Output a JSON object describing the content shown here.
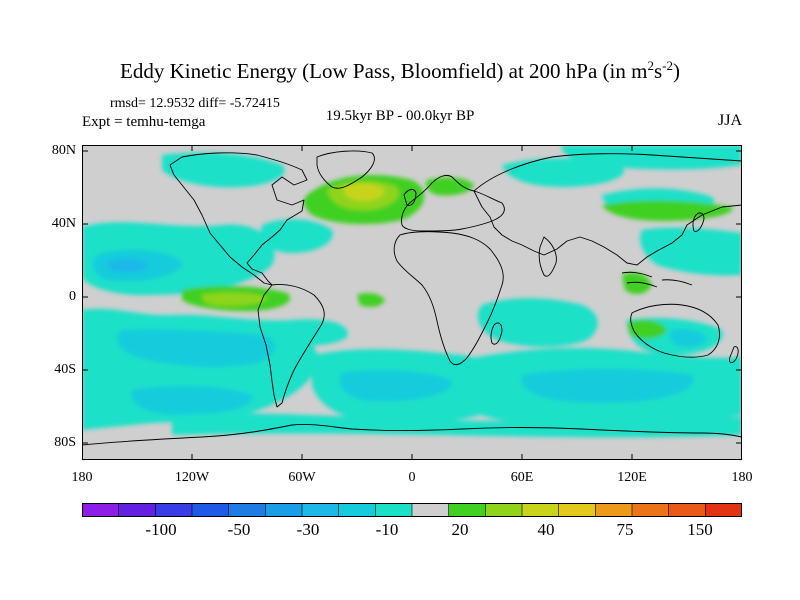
{
  "title": {
    "main": "Eddy Kinetic Energy (Low Pass, Bloomfield) at 200 hPa (in m",
    "sup1": "2",
    "mid": "s",
    "sup2": "-2",
    "close": ")"
  },
  "stats": "rmsd= 12.9532 diff= -5.72415",
  "expt": "Expt = temhu-temga",
  "period": "19.5kyr BP - 00.0kyr BP",
  "season": "JJA",
  "y_axis_labels": [
    "80N",
    "40N",
    "0",
    "40S",
    "80S"
  ],
  "x_axis_labels": [
    "180",
    "120W",
    "60W",
    "0",
    "60E",
    "120E",
    "180"
  ],
  "colorbar": {
    "colors": [
      "#8d1ee8",
      "#6420e0",
      "#3c3ce6",
      "#1f5ae6",
      "#1e7ce4",
      "#1c9ee6",
      "#1bb8e8",
      "#14ccdc",
      "#1ae0c8",
      "#cfcfcf",
      "#3fd020",
      "#8fd41a",
      "#c8d41a",
      "#e4c81c",
      "#ec9a1a",
      "#ec7418",
      "#e85a16",
      "#e23412"
    ],
    "labels": [
      "-100",
      "-50",
      "-30",
      "-10",
      "20",
      "40",
      "75",
      "150"
    ]
  },
  "map_colors": {
    "ocean_bg": "#cfcfcf",
    "neg_light": "#1ae0c8",
    "neg_mid": "#14ccdc",
    "neg_strong": "#1bb8e8",
    "neg_stronger": "#1c9ee6",
    "pos_light": "#3fd020",
    "pos_mid": "#8fd41a",
    "pos_strong": "#c8d41a"
  }
}
